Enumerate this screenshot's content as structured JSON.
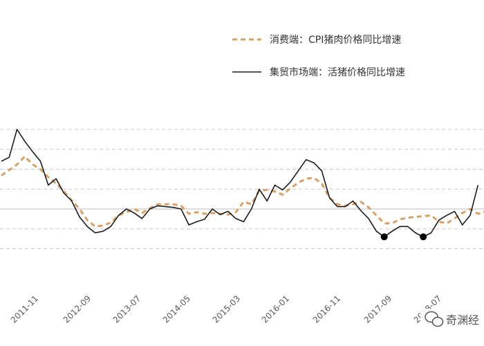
{
  "chart_data": {
    "type": "line",
    "x_tick_labels": [
      "2011-11",
      "2012-09",
      "2013-07",
      "2014-05",
      "2015-03",
      "2016-01",
      "2016-11",
      "2017-09",
      "2018-07"
    ],
    "y_gridlines": [
      100,
      75,
      50,
      25,
      0,
      -25,
      -50
    ],
    "ylim": [
      -60,
      100
    ],
    "grid": "horizontal dashed",
    "legend_position": "top-right",
    "series": [
      {
        "name": "消费端：CPI猪肉价格同比增速",
        "style": "dashed",
        "color": "#d9a066",
        "points": [
          [
            0,
            42
          ],
          [
            2,
            56
          ],
          [
            3,
            66
          ],
          [
            4,
            56
          ],
          [
            5,
            50
          ],
          [
            6,
            40
          ],
          [
            7,
            32
          ],
          [
            8,
            22
          ],
          [
            10,
            0
          ],
          [
            11,
            -14
          ],
          [
            12,
            -22
          ],
          [
            13,
            -21
          ],
          [
            14,
            -17
          ],
          [
            15,
            -8
          ],
          [
            16,
            -4
          ],
          [
            17,
            0
          ],
          [
            18,
            -5
          ],
          [
            19,
            1
          ],
          [
            20,
            6
          ],
          [
            21,
            6
          ],
          [
            22,
            6
          ],
          [
            23,
            4
          ],
          [
            24,
            -6
          ],
          [
            25,
            -4
          ],
          [
            26,
            -6
          ],
          [
            27,
            -5
          ],
          [
            28,
            -6
          ],
          [
            29,
            -7
          ],
          [
            30,
            -4
          ],
          [
            31,
            9
          ],
          [
            32,
            6
          ],
          [
            33,
            23
          ],
          [
            34,
            24
          ],
          [
            35,
            22
          ],
          [
            36,
            18
          ],
          [
            37,
            26
          ],
          [
            38,
            33
          ],
          [
            39,
            38
          ],
          [
            40,
            39
          ],
          [
            41,
            32
          ],
          [
            42,
            14
          ],
          [
            43,
            6
          ],
          [
            44,
            4
          ],
          [
            45,
            6
          ],
          [
            46,
            9
          ],
          [
            47,
            2
          ],
          [
            48,
            -8
          ],
          [
            49,
            -18
          ],
          [
            50,
            -18
          ],
          [
            51,
            -13
          ],
          [
            52,
            -11
          ],
          [
            53,
            -10
          ],
          [
            54,
            -9
          ],
          [
            55,
            -8
          ],
          [
            56,
            -16
          ],
          [
            57,
            -18
          ],
          [
            58,
            -12
          ],
          [
            59,
            -5
          ],
          [
            60,
            0
          ],
          [
            61,
            -6
          ],
          [
            62,
            -3
          ]
        ]
      },
      {
        "name": "集贸市场端：活猪价格同比增速",
        "style": "solid",
        "color": "#1a1a1a",
        "points": [
          [
            0,
            60
          ],
          [
            1,
            65
          ],
          [
            2,
            100
          ],
          [
            3,
            85
          ],
          [
            4,
            72
          ],
          [
            5,
            60
          ],
          [
            6,
            30
          ],
          [
            7,
            38
          ],
          [
            8,
            20
          ],
          [
            9,
            10
          ],
          [
            10,
            -10
          ],
          [
            11,
            -22
          ],
          [
            12,
            -30
          ],
          [
            13,
            -28
          ],
          [
            14,
            -22
          ],
          [
            15,
            -8
          ],
          [
            16,
            0
          ],
          [
            17,
            -5
          ],
          [
            18,
            -12
          ],
          [
            19,
            0
          ],
          [
            20,
            4
          ],
          [
            21,
            3
          ],
          [
            22,
            2
          ],
          [
            23,
            0
          ],
          [
            24,
            -20
          ],
          [
            25,
            -16
          ],
          [
            26,
            -13
          ],
          [
            27,
            0
          ],
          [
            28,
            -7
          ],
          [
            29,
            -3
          ],
          [
            30,
            -12
          ],
          [
            31,
            -16
          ],
          [
            32,
            0
          ],
          [
            33,
            25
          ],
          [
            34,
            10
          ],
          [
            35,
            30
          ],
          [
            36,
            24
          ],
          [
            37,
            34
          ],
          [
            38,
            48
          ],
          [
            39,
            62
          ],
          [
            40,
            58
          ],
          [
            41,
            48
          ],
          [
            42,
            14
          ],
          [
            43,
            3
          ],
          [
            44,
            3
          ],
          [
            45,
            10
          ],
          [
            46,
            -2
          ],
          [
            47,
            -12
          ],
          [
            48,
            -28
          ],
          [
            49,
            -35
          ],
          [
            50,
            -28
          ],
          [
            51,
            -22
          ],
          [
            52,
            -22
          ],
          [
            53,
            -30
          ],
          [
            54,
            -35
          ],
          [
            55,
            -30
          ],
          [
            56,
            -14
          ],
          [
            57,
            -8
          ],
          [
            58,
            -3
          ],
          [
            59,
            -20
          ],
          [
            60,
            -8
          ],
          [
            61,
            30
          ]
        ]
      }
    ],
    "markers": [
      {
        "series": 1,
        "x": 49,
        "y": -35
      },
      {
        "series": 1,
        "x": 54,
        "y": -35
      }
    ]
  },
  "colors": {
    "cpi_line": "#d9a066",
    "market_line": "#1a1a1a",
    "grid": "#c8c8c8",
    "axis_label": "#595959"
  },
  "watermark": {
    "icon": "wechat-bubble-icon",
    "text": "奇渊经"
  }
}
